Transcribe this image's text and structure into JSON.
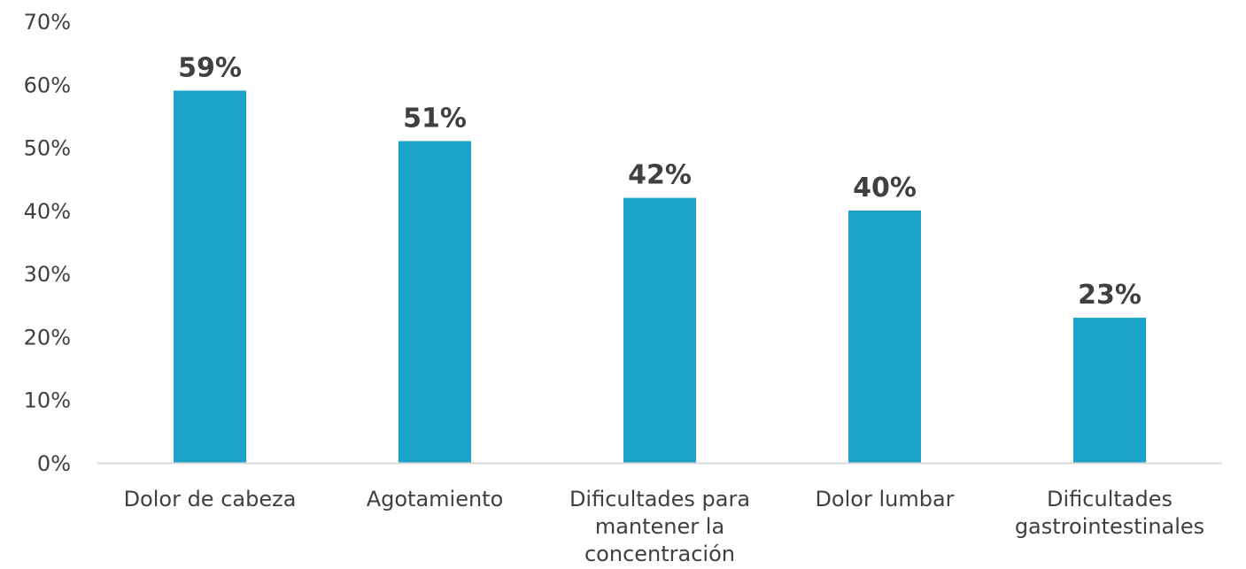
{
  "chart_data": {
    "type": "bar",
    "title": "",
    "xlabel": "",
    "ylabel": "",
    "categories": [
      [
        "Dolor de cabeza"
      ],
      [
        "Agotamiento"
      ],
      [
        "Dificultades para",
        "mantener la",
        "concentración"
      ],
      [
        "Dolor lumbar"
      ],
      [
        "Dificultades",
        "gastrointestinales"
      ]
    ],
    "values": [
      59,
      51,
      42,
      40,
      23
    ],
    "data_labels": [
      "59%",
      "51%",
      "42%",
      "40%",
      "23%"
    ],
    "y_ticks": [
      "0%",
      "10%",
      "20%",
      "30%",
      "40%",
      "50%",
      "60%",
      "70%"
    ],
    "ylim": [
      0,
      70
    ],
    "grid": false,
    "legend": "none",
    "bar_color": "#1BA4C8",
    "axis_color": "#D9D9D9",
    "text_color": "#404040"
  }
}
